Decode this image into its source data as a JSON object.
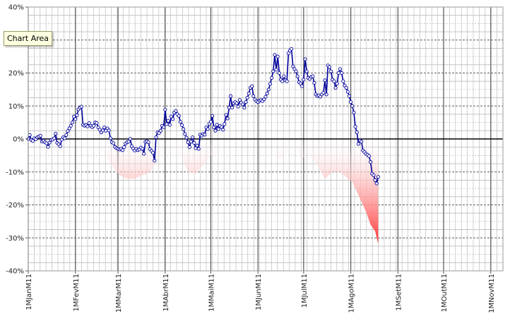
{
  "tooltip": {
    "label": "Chart Area"
  },
  "colors": {
    "series_line": "#00009c",
    "drawdown_fill": "#ff3333",
    "zero_line": "#000000",
    "grid": "#bcbcbc"
  },
  "chart_data": {
    "type": "line",
    "title": "",
    "xlabel": "",
    "ylabel": "",
    "ylim": [
      -40,
      40
    ],
    "y_ticks": [
      "40%",
      "30%",
      "20%",
      "10%",
      "0%",
      "-10%",
      "-20%",
      "-30%",
      "-40%"
    ],
    "y_tick_values": [
      40,
      30,
      20,
      10,
      0,
      -10,
      -20,
      -30,
      -40
    ],
    "y_unit": "%",
    "x_ticks": [
      "1MJanM11",
      "1MFevM11",
      "1MMarM11",
      "1MAbrM11",
      "1MMaiM11",
      "1MJunM11",
      "1MJulM11",
      "1MAgoM11",
      "1MSetM11",
      "1MOutM11",
      "1MNovM11"
    ],
    "x_tick_days": [
      0,
      31,
      59,
      90,
      120,
      151,
      181,
      212,
      243,
      273,
      304
    ],
    "x_end_day": 312,
    "grid": true,
    "legend": "none",
    "series": [
      {
        "type": "line",
        "markers": true,
        "points": [
          [
            0,
            0
          ],
          [
            1,
            1.2
          ],
          [
            2,
            -0.3
          ],
          [
            3,
            -0.6
          ],
          [
            4,
            0.2
          ],
          [
            5,
            -0.1
          ],
          [
            6,
            0.5
          ],
          [
            7,
            0.7
          ],
          [
            8,
            1.0
          ],
          [
            9,
            -0.8
          ],
          [
            10,
            -0.5
          ],
          [
            11,
            -1.0
          ],
          [
            12,
            -1.3
          ],
          [
            13,
            -2.4
          ],
          [
            14,
            -1.1
          ],
          [
            15,
            -0.3
          ],
          [
            16,
            -0.2
          ],
          [
            17,
            0.2
          ],
          [
            18,
            1.6
          ],
          [
            19,
            -1.2
          ],
          [
            20,
            -1.6
          ],
          [
            21,
            -2.2
          ],
          [
            22,
            -0.2
          ],
          [
            23,
            0.5
          ],
          [
            24,
            0.2
          ],
          [
            25,
            1.2
          ],
          [
            26,
            2.4
          ],
          [
            27,
            3.2
          ],
          [
            28,
            4.0
          ],
          [
            29,
            5.0
          ],
          [
            30,
            6.8
          ],
          [
            31,
            6.0
          ],
          [
            32,
            7.2
          ],
          [
            33,
            9.0
          ],
          [
            34,
            9.5
          ],
          [
            35,
            9.8
          ],
          [
            36,
            4.3
          ],
          [
            37,
            4.0
          ],
          [
            38,
            4.2
          ],
          [
            39,
            3.8
          ],
          [
            40,
            4.8
          ],
          [
            41,
            4.0
          ],
          [
            42,
            3.6
          ],
          [
            43,
            4.0
          ],
          [
            44,
            5.0
          ],
          [
            45,
            4.8
          ],
          [
            46,
            3.5
          ],
          [
            47,
            2.8
          ],
          [
            48,
            2.0
          ],
          [
            49,
            2.6
          ],
          [
            50,
            3.5
          ],
          [
            51,
            2.5
          ],
          [
            52,
            3.2
          ],
          [
            53,
            2.6
          ],
          [
            54,
            0.2
          ],
          [
            55,
            -1.0
          ],
          [
            56,
            -1.3
          ],
          [
            57,
            -2.4
          ],
          [
            58,
            -2.8
          ],
          [
            59,
            -3.0
          ],
          [
            60,
            -3.2
          ],
          [
            61,
            -3.0
          ],
          [
            62,
            -3.4
          ],
          [
            63,
            -2.5
          ],
          [
            64,
            -1.4
          ],
          [
            65,
            -1.0
          ],
          [
            66,
            -0.8
          ],
          [
            67,
            0.0
          ],
          [
            68,
            -2.2
          ],
          [
            69,
            -2.9
          ],
          [
            70,
            -3.5
          ],
          [
            71,
            -3.0
          ],
          [
            72,
            -3.4
          ],
          [
            73,
            -3.2
          ],
          [
            74,
            -2.6
          ],
          [
            75,
            -3.0
          ],
          [
            76,
            -4.5
          ],
          [
            77,
            -0.9
          ],
          [
            78,
            -0.7
          ],
          [
            79,
            -1.0
          ],
          [
            80,
            -3.1
          ],
          [
            81,
            -3.6
          ],
          [
            82,
            -4.2
          ],
          [
            83,
            -6.6
          ],
          [
            84,
            0.5
          ],
          [
            85,
            2.0
          ],
          [
            86,
            1.8
          ],
          [
            87,
            2.5
          ],
          [
            88,
            4.0
          ],
          [
            89,
            3.6
          ],
          [
            90,
            8.9
          ],
          [
            91,
            4.5
          ],
          [
            92,
            5.5
          ],
          [
            93,
            4.3
          ],
          [
            94,
            6.8
          ],
          [
            95,
            6.0
          ],
          [
            96,
            8.0
          ],
          [
            97,
            8.5
          ],
          [
            98,
            7.5
          ],
          [
            99,
            7.0
          ],
          [
            100,
            5.2
          ],
          [
            101,
            4.2
          ],
          [
            102,
            3.0
          ],
          [
            103,
            1.5
          ],
          [
            104,
            0.4
          ],
          [
            105,
            -1.0
          ],
          [
            106,
            -2.5
          ],
          [
            107,
            -0.8
          ],
          [
            108,
            0.5
          ],
          [
            109,
            -1.2
          ],
          [
            110,
            -2.8
          ],
          [
            111,
            -2.0
          ],
          [
            112,
            -3.0
          ],
          [
            113,
            1.3
          ],
          [
            114,
            1.0
          ],
          [
            115,
            1.5
          ],
          [
            116,
            1.3
          ],
          [
            117,
            3.5
          ],
          [
            118,
            3.0
          ],
          [
            119,
            4.6
          ],
          [
            120,
            5.2
          ],
          [
            121,
            7.0
          ],
          [
            122,
            3.5
          ],
          [
            123,
            2.5
          ],
          [
            124,
            4.3
          ],
          [
            125,
            3.0
          ],
          [
            126,
            4.0
          ],
          [
            127,
            3.6
          ],
          [
            128,
            2.8
          ],
          [
            129,
            4.5
          ],
          [
            130,
            7.3
          ],
          [
            131,
            6.2
          ],
          [
            132,
            9.5
          ],
          [
            133,
            13.0
          ],
          [
            134,
            9.5
          ],
          [
            135,
            10.8
          ],
          [
            136,
            11.2
          ],
          [
            137,
            10.8
          ],
          [
            138,
            9.8
          ],
          [
            139,
            11.8
          ],
          [
            140,
            11.0
          ],
          [
            141,
            10.5
          ],
          [
            142,
            9.5
          ],
          [
            143,
            11.2
          ],
          [
            144,
            12.5
          ],
          [
            145,
            13.8
          ],
          [
            146,
            15.5
          ],
          [
            147,
            16.0
          ],
          [
            148,
            13.0
          ],
          [
            149,
            12.0
          ],
          [
            150,
            11.4
          ],
          [
            151,
            11.2
          ],
          [
            152,
            11.6
          ],
          [
            153,
            11.8
          ],
          [
            154,
            11.5
          ],
          [
            155,
            12.0
          ],
          [
            156,
            12.8
          ],
          [
            157,
            13.8
          ],
          [
            158,
            15.0
          ],
          [
            159,
            16.7
          ],
          [
            160,
            18.5
          ],
          [
            161,
            20.5
          ],
          [
            162,
            25.5
          ],
          [
            163,
            21.0
          ],
          [
            164,
            25.0
          ],
          [
            165,
            20.0
          ],
          [
            166,
            18.0
          ],
          [
            167,
            17.5
          ],
          [
            168,
            19.0
          ],
          [
            169,
            17.8
          ],
          [
            170,
            17.5
          ],
          [
            171,
            26.0
          ],
          [
            172,
            26.8
          ],
          [
            173,
            27.3
          ],
          [
            174,
            22.0
          ],
          [
            175,
            21.2
          ],
          [
            176,
            20.5
          ],
          [
            177,
            19.0
          ],
          [
            178,
            17.2
          ],
          [
            179,
            16.8
          ],
          [
            180,
            16.0
          ],
          [
            181,
            18.0
          ],
          [
            182,
            24.2
          ],
          [
            183,
            20.5
          ],
          [
            184,
            18.5
          ],
          [
            185,
            18.2
          ],
          [
            186,
            18.8
          ],
          [
            187,
            19.0
          ],
          [
            188,
            17.0
          ],
          [
            189,
            13.5
          ],
          [
            190,
            13.0
          ],
          [
            191,
            13.2
          ],
          [
            192,
            12.8
          ],
          [
            193,
            13.5
          ],
          [
            194,
            14.0
          ],
          [
            195,
            17.8
          ],
          [
            196,
            13.5
          ],
          [
            197,
            22.3
          ],
          [
            198,
            21.8
          ],
          [
            199,
            20.5
          ],
          [
            200,
            18.0
          ],
          [
            201,
            17.5
          ],
          [
            202,
            15.5
          ],
          [
            203,
            16.8
          ],
          [
            204,
            20.0
          ],
          [
            205,
            21.2
          ],
          [
            206,
            20.0
          ],
          [
            207,
            17.5
          ],
          [
            208,
            16.2
          ],
          [
            209,
            15.5
          ],
          [
            210,
            14.3
          ],
          [
            211,
            13.0
          ],
          [
            212,
            11.2
          ],
          [
            213,
            10.0
          ],
          [
            214,
            8.0
          ],
          [
            215,
            3.7
          ],
          [
            216,
            2.0
          ],
          [
            217,
            -1.5
          ],
          [
            218,
            -0.5
          ],
          [
            219,
            -0.8
          ],
          [
            220,
            -3.5
          ],
          [
            221,
            -4.0
          ],
          [
            222,
            -4.5
          ],
          [
            223,
            -4.8
          ],
          [
            224,
            -5.2
          ],
          [
            225,
            -7.0
          ],
          [
            226,
            -10.5
          ],
          [
            227,
            -11.0
          ],
          [
            228,
            -12.5
          ],
          [
            229,
            -13.5
          ],
          [
            230,
            -11.5
          ]
        ]
      },
      {
        "type": "area",
        "baseline": 0,
        "opacity_gradient": "vertical",
        "points": [
          [
            0,
            0
          ],
          [
            15,
            -1
          ],
          [
            30,
            -2
          ],
          [
            40,
            -3
          ],
          [
            50,
            -4
          ],
          [
            55,
            -8
          ],
          [
            60,
            -11
          ],
          [
            65,
            -12
          ],
          [
            70,
            -12
          ],
          [
            75,
            -11
          ],
          [
            80,
            -10
          ],
          [
            85,
            -6
          ],
          [
            90,
            -2
          ],
          [
            95,
            -3
          ],
          [
            100,
            -5
          ],
          [
            105,
            -10
          ],
          [
            110,
            -10.5
          ],
          [
            115,
            -8
          ],
          [
            120,
            -5
          ],
          [
            125,
            -4
          ],
          [
            130,
            -2
          ],
          [
            140,
            -1
          ],
          [
            150,
            -1
          ],
          [
            160,
            -2
          ],
          [
            165,
            -6
          ],
          [
            170,
            -4
          ],
          [
            175,
            -2
          ],
          [
            180,
            -6
          ],
          [
            185,
            -4
          ],
          [
            190,
            -8
          ],
          [
            195,
            -12
          ],
          [
            200,
            -10
          ],
          [
            205,
            -10
          ],
          [
            210,
            -12
          ],
          [
            213,
            -13
          ],
          [
            218,
            -18
          ],
          [
            222,
            -22
          ],
          [
            225,
            -26
          ],
          [
            228,
            -28
          ],
          [
            230,
            -31.8
          ],
          [
            230,
            0
          ]
        ]
      }
    ]
  }
}
